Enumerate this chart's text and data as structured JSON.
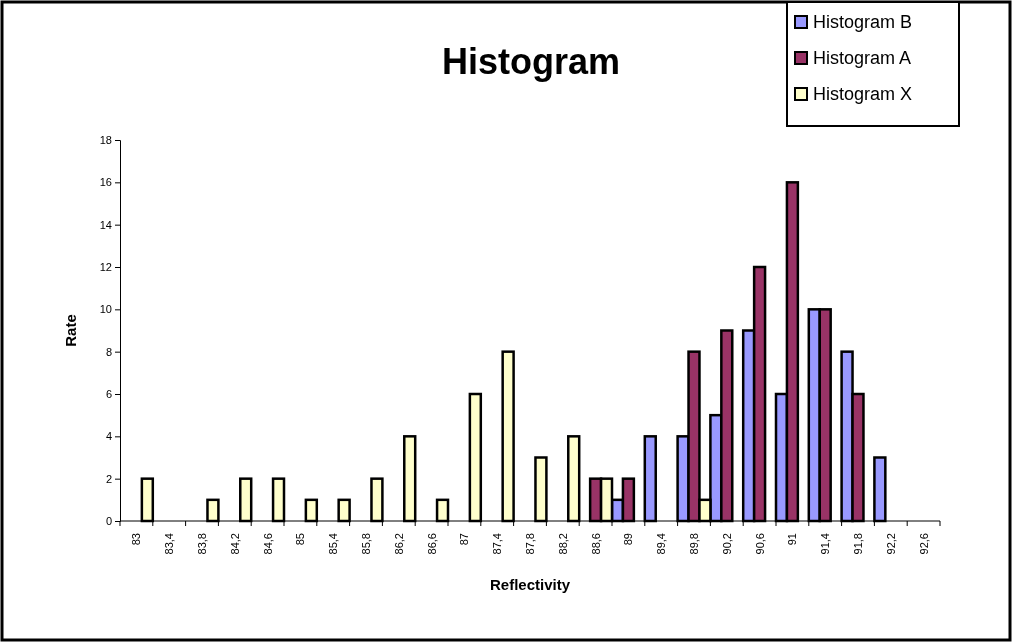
{
  "chart_data": {
    "type": "bar",
    "title": "Histogram",
    "xlabel": "Reflectivity",
    "ylabel": "Rate",
    "categories": [
      "83",
      "83,4",
      "83,8",
      "84,2",
      "84,6",
      "85",
      "85,4",
      "85,8",
      "86,2",
      "86,6",
      "87",
      "87,4",
      "87,8",
      "88,2",
      "88,6",
      "89",
      "89,4",
      "89,8",
      "90,2",
      "90,6",
      "91",
      "91,4",
      "91,8",
      "92,2",
      "92,6"
    ],
    "series": [
      {
        "name": "Histogram B",
        "color": "#9999ff",
        "values": [
          0,
          0,
          0,
          0,
          0,
          0,
          0,
          0,
          0,
          0,
          0,
          0,
          0,
          0,
          0,
          1,
          4,
          4,
          5,
          9,
          6,
          10,
          8,
          3,
          0
        ]
      },
      {
        "name": "Histogram A",
        "color": "#993366",
        "values": [
          0,
          0,
          0,
          0,
          0,
          0,
          0,
          0,
          0,
          0,
          0,
          0,
          0,
          0,
          2,
          2,
          0,
          8,
          9,
          12,
          16,
          10,
          6,
          0,
          0
        ]
      },
      {
        "name": "Histogram X",
        "color": "#ffffcc",
        "values": [
          2,
          0,
          1,
          2,
          2,
          1,
          1,
          2,
          4,
          1,
          6,
          8,
          3,
          4,
          2,
          0,
          0,
          1,
          0,
          0,
          0,
          0,
          0,
          0,
          0
        ]
      }
    ],
    "ylim": [
      0,
      18
    ],
    "yticks": [
      0,
      2,
      4,
      6,
      8,
      10,
      12,
      14,
      16,
      18
    ],
    "grid": false,
    "legend": "top right"
  }
}
